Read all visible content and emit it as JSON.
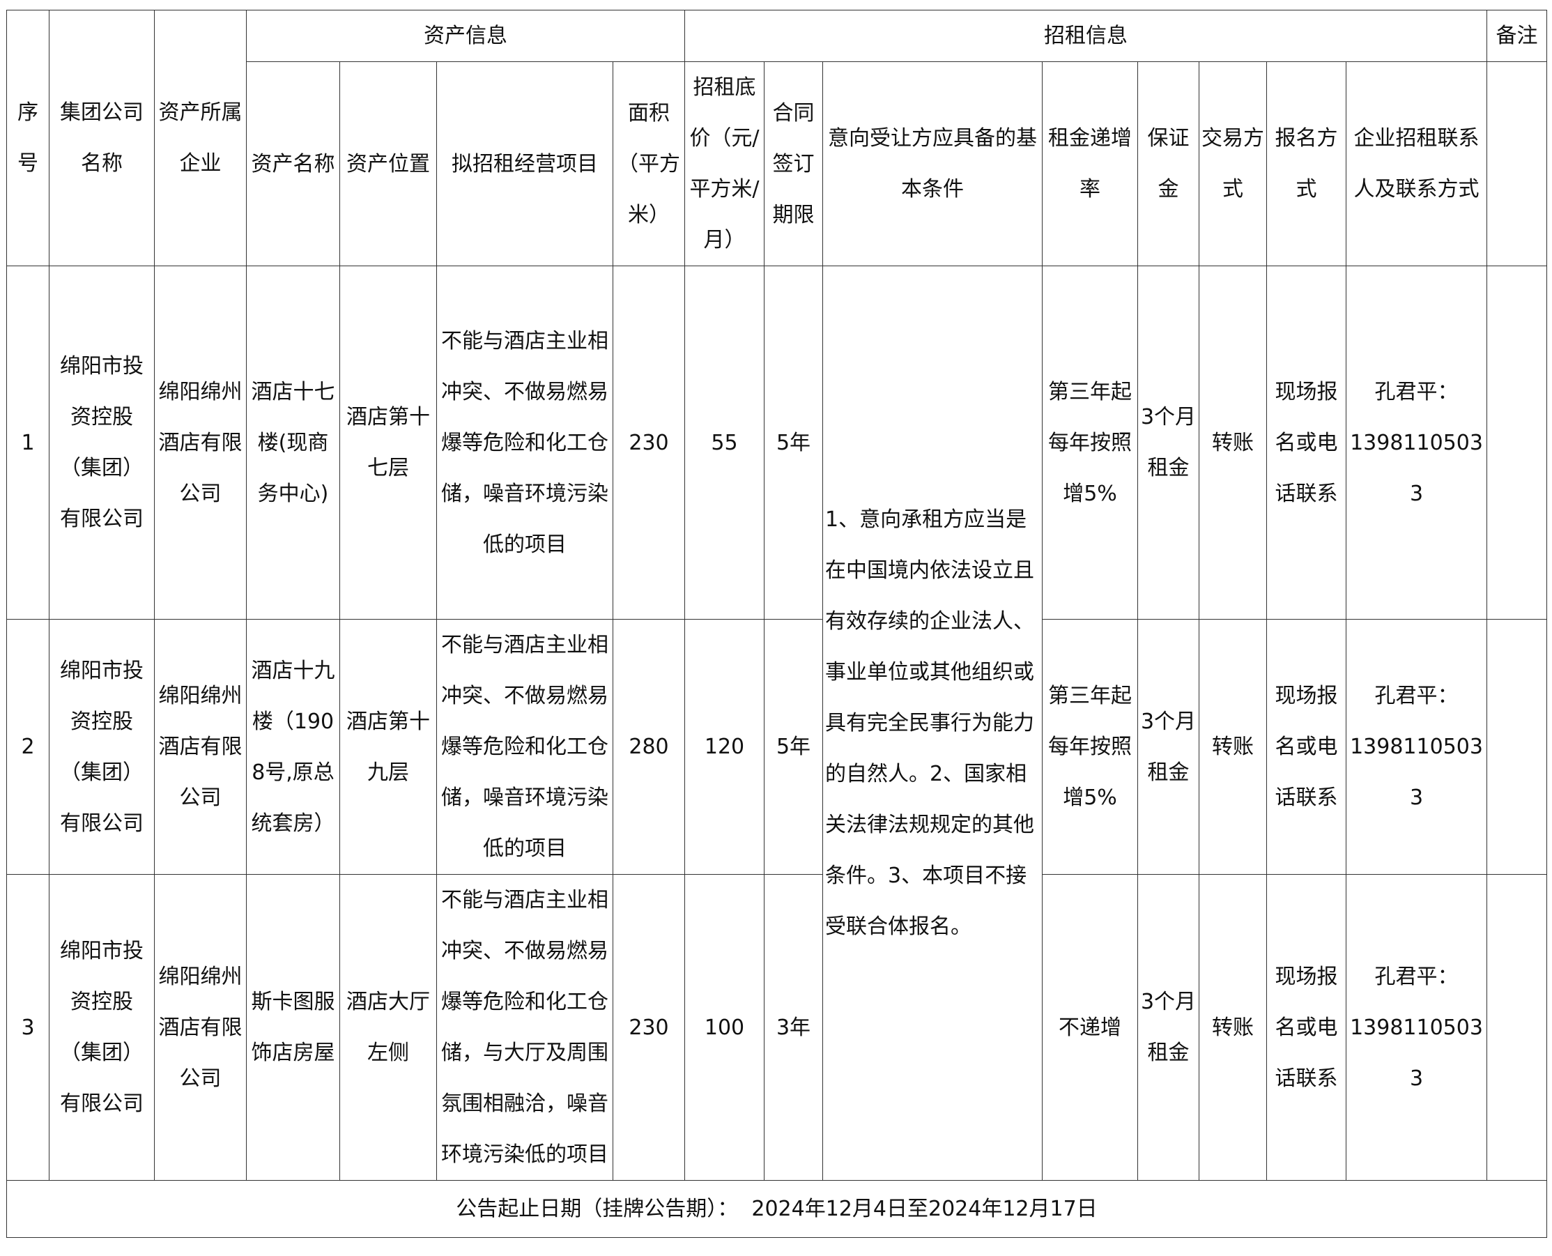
{
  "header": {
    "group_asset": "资产信息",
    "group_lease": "招租信息",
    "remarks": "备注",
    "columns": {
      "no": "序号",
      "group_company": "集团公司名称",
      "owner": "资产所属企业",
      "asset_name": "资产名称",
      "location": "资产位置",
      "business": "拟招租经营项目",
      "area": "面积（平方米）",
      "base_price": "招租底价（元/平方米/月）",
      "term": "合同签订期限",
      "conditions": "意向受让方应具备的基本条件",
      "increase": "租金递增率",
      "deposit": "保证金",
      "trade": "交易方式",
      "signup": "报名方式",
      "contact": "企业招租联系人及联系方式"
    }
  },
  "conditions_text": "1、意向承租方应当是在中国境内依法设立且有效存续的企业法人、事业单位或其他组织或具有完全民事行为能力的自然人。2、国家相关法律法规规定的其他条件。3、本项目不接受联合体报名。",
  "rows": [
    {
      "no": "1",
      "group_company": "绵阳市投资控股（集团）有限公司",
      "owner": "绵阳绵州酒店有限公司",
      "asset_name": "酒店十七楼(现商务中心)",
      "location": "酒店第十七层",
      "business": "不能与酒店主业相冲突、不做易燃易爆等危险和化工仓储，噪音环境污染低的项目",
      "area": "230",
      "base_price": "55",
      "term": "5年",
      "increase": "第三年起每年按照增5%",
      "deposit": "3个月租金",
      "trade": "转账",
      "signup": "现场报名或电话联系",
      "contact_name": "孔君平：",
      "contact_phone": "13981105033",
      "remarks": ""
    },
    {
      "no": "2",
      "group_company": "绵阳市投资控股（集团）有限公司",
      "owner": "绵阳绵州酒店有限公司",
      "asset_name": "酒店十九楼（1908号,原总统套房）",
      "location": "酒店第十九层",
      "business": "不能与酒店主业相冲突、不做易燃易爆等危险和化工仓储，噪音环境污染低的项目",
      "area": "280",
      "base_price": "120",
      "term": "5年",
      "increase": "第三年起每年按照增5%",
      "deposit": "3个月租金",
      "trade": "转账",
      "signup": "现场报名或电话联系",
      "contact_name": "孔君平：",
      "contact_phone": "13981105033",
      "remarks": ""
    },
    {
      "no": "3",
      "group_company": "绵阳市投资控股（集团）有限公司",
      "owner": "绵阳绵州酒店有限公司",
      "asset_name": "斯卡图服饰店房屋",
      "location": "酒店大厅左侧",
      "business": "不能与酒店主业相冲突、不做易燃易爆等危险和化工仓储，与大厅及周围氛围相融洽，噪音环境污染低的项目",
      "area": "230",
      "base_price": "100",
      "term": "3年",
      "increase": "不递增",
      "deposit": "3个月租金",
      "trade": "转账",
      "signup": "现场报名或电话联系",
      "contact_name": "孔君平：",
      "contact_phone": "13981105033",
      "remarks": ""
    }
  ],
  "footer": "公告起止日期（挂牌公告期）：  2024年12月4日至2024年12月17日"
}
